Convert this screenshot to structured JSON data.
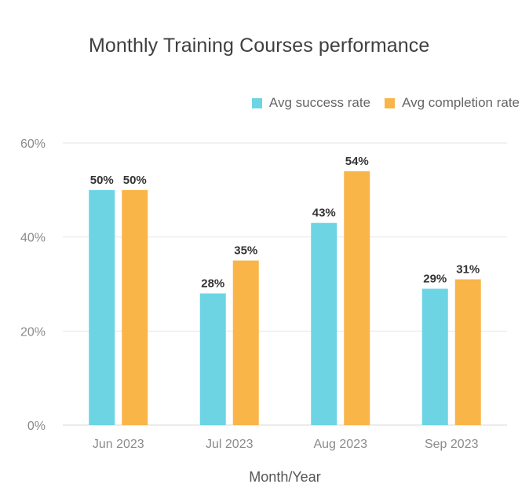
{
  "chart_data": {
    "type": "bar",
    "title": "Monthly Training Courses performance",
    "xlabel": "Month/Year",
    "ylabel": "",
    "categories": [
      "Jun 2023",
      "Jul 2023",
      "Aug 2023",
      "Sep 2023"
    ],
    "series": [
      {
        "name": "Avg success rate",
        "color": "#6DD4E3",
        "values": [
          50,
          28,
          43,
          29
        ],
        "labels": [
          "50%",
          "28%",
          "43%",
          "29%"
        ]
      },
      {
        "name": "Avg completion rate",
        "color": "#F9B548",
        "values": [
          50,
          35,
          54,
          31
        ],
        "labels": [
          "50%",
          "35%",
          "54%",
          "31%"
        ]
      }
    ],
    "ylim": [
      0,
      60
    ],
    "yticks": [
      0,
      20,
      40,
      60
    ],
    "ytick_labels": [
      "0%",
      "20%",
      "40%",
      "60%"
    ],
    "grid": true,
    "legend_position": "top-right"
  }
}
